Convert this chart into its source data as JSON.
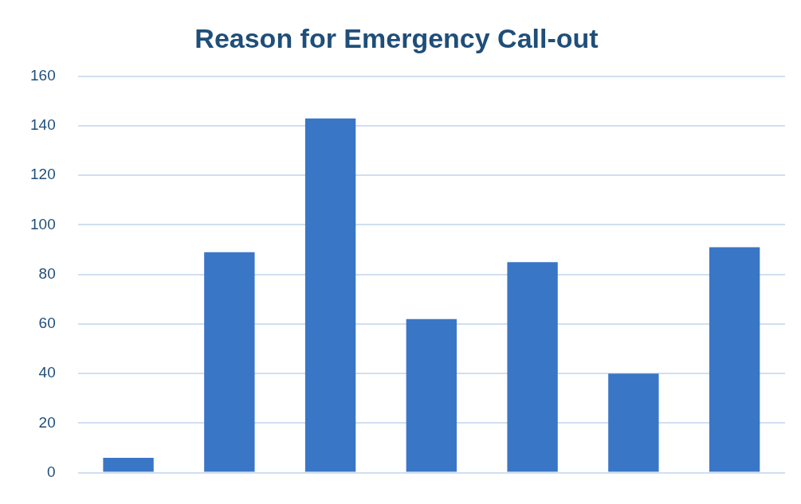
{
  "chart_data": {
    "type": "bar",
    "title": "Reason for Emergency Call-out",
    "categories": [
      null,
      null,
      null,
      null,
      null,
      null,
      null
    ],
    "values": [
      6,
      89,
      143,
      62,
      85,
      40,
      91
    ],
    "color": "#3a76c6",
    "ylim": [
      0,
      160
    ],
    "yticks": [
      0,
      20,
      40,
      60,
      80,
      100,
      120,
      140,
      160
    ],
    "grid": "y"
  }
}
